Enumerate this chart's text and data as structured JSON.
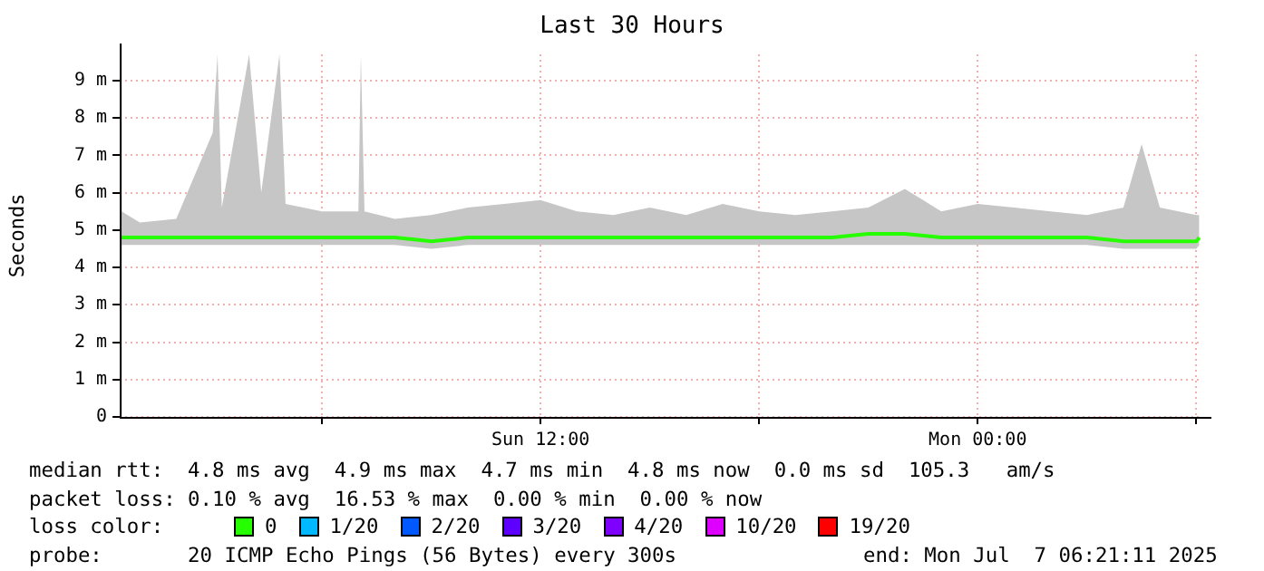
{
  "chart_data": {
    "type": "line",
    "title": "Last 30 Hours",
    "ylabel": "Seconds",
    "xlim": [
      "2025-07-06T00:27",
      "2025-07-07T06:07"
    ],
    "xticks": [
      {
        "value": "2025-07-06T06:00",
        "label": null
      },
      {
        "value": "2025-07-06T12:00",
        "label": "Sun 12:00"
      },
      {
        "value": "2025-07-06T18:00",
        "label": null
      },
      {
        "value": "2025-07-07T00:00",
        "label": "Mon 00:00"
      },
      {
        "value": "2025-07-07T06:00",
        "label": null
      }
    ],
    "ylim": [
      0,
      9.7
    ],
    "yticks": [
      0,
      {
        "value": 1,
        "label": "1 m"
      },
      {
        "value": 2,
        "label": "2 m"
      },
      {
        "value": 3,
        "label": "3 m"
      },
      {
        "value": 4,
        "label": "4 m"
      },
      {
        "value": 5,
        "label": "5 m"
      },
      {
        "value": 6,
        "label": "6 m"
      },
      {
        "value": 7,
        "label": "7 m"
      },
      {
        "value": 8,
        "label": "8 m"
      },
      {
        "value": 9,
        "label": "9 m"
      }
    ],
    "grid": true,
    "legend": "bottom",
    "legend_title": "loss color:",
    "marker": "none",
    "series": [
      {
        "name": "0",
        "color": "#26ff00",
        "x": [
          "2025-07-06T00:30",
          "2025-07-06T01:00",
          "2025-07-06T02:00",
          "2025-07-06T03:00",
          "2025-07-06T03:08",
          "2025-07-06T03:15",
          "2025-07-06T04:00",
          "2025-07-06T04:20",
          "2025-07-06T04:50",
          "2025-07-06T05:00",
          "2025-07-06T06:00",
          "2025-07-06T07:00",
          "2025-07-06T07:04",
          "2025-07-06T07:10",
          "2025-07-06T08:00",
          "2025-07-06T09:00",
          "2025-07-06T10:00",
          "2025-07-06T11:00",
          "2025-07-06T12:00",
          "2025-07-06T13:00",
          "2025-07-06T14:00",
          "2025-07-06T15:00",
          "2025-07-06T16:00",
          "2025-07-06T17:00",
          "2025-07-06T18:00",
          "2025-07-06T19:00",
          "2025-07-06T20:00",
          "2025-07-06T21:00",
          "2025-07-06T22:00",
          "2025-07-06T23:00",
          "2025-07-07T00:00",
          "2025-07-07T01:00",
          "2025-07-07T02:00",
          "2025-07-07T03:00",
          "2025-07-07T04:00",
          "2025-07-07T04:30",
          "2025-07-07T05:00",
          "2025-07-07T06:00",
          "2025-07-07T06:05"
        ],
        "values": [
          4.8,
          4.8,
          4.8,
          4.8,
          4.8,
          4.8,
          4.8,
          4.8,
          4.8,
          4.8,
          4.8,
          4.8,
          4.8,
          4.8,
          4.8,
          4.7,
          4.8,
          4.8,
          4.8,
          4.8,
          4.8,
          4.8,
          4.8,
          4.8,
          4.8,
          4.8,
          4.8,
          4.9,
          4.9,
          4.8,
          4.8,
          4.8,
          4.8,
          4.8,
          4.7,
          4.7,
          4.7,
          4.7,
          4.8
        ],
        "lower": [
          4.6,
          4.6,
          4.6,
          4.6,
          4.6,
          4.6,
          4.6,
          4.6,
          4.6,
          4.6,
          4.6,
          4.6,
          4.6,
          4.6,
          4.6,
          4.5,
          4.6,
          4.6,
          4.6,
          4.6,
          4.6,
          4.6,
          4.6,
          4.6,
          4.6,
          4.6,
          4.6,
          4.6,
          4.6,
          4.6,
          4.6,
          4.6,
          4.6,
          4.6,
          4.5,
          4.5,
          4.5,
          4.5,
          4.6
        ],
        "upper": [
          5.5,
          5.2,
          5.3,
          7.6,
          9.7,
          5.6,
          9.7,
          6.0,
          9.7,
          5.7,
          5.5,
          5.5,
          9.7,
          5.5,
          5.3,
          5.4,
          5.6,
          5.7,
          5.8,
          5.5,
          5.4,
          5.6,
          5.4,
          5.7,
          5.5,
          5.4,
          5.5,
          5.6,
          6.1,
          5.5,
          5.7,
          5.6,
          5.5,
          5.4,
          5.6,
          7.3,
          5.6,
          5.4,
          5.4
        ]
      },
      {
        "name": "1/20",
        "color": "#00b8ff"
      },
      {
        "name": "2/20",
        "color": "#0059ff"
      },
      {
        "name": "3/20",
        "color": "#5e00ff"
      },
      {
        "name": "4/20",
        "color": "#7e00ff"
      },
      {
        "name": "10/20",
        "color": "#dd00ff"
      },
      {
        "name": "19/20",
        "color": "#ff0000"
      }
    ],
    "annotations": [
      "median rtt:  4.8 ms avg  4.9 ms max  4.7 ms min  4.8 ms now  0.0 ms sd  105.3   am/s",
      "packet loss: 0.10 % avg  16.53 % max  0.00 % min  0.00 % now",
      "probe:       20 ICMP Echo Pings (56 Bytes) every 300s",
      "end: Mon Jul  7 06:21:11 2025"
    ]
  }
}
